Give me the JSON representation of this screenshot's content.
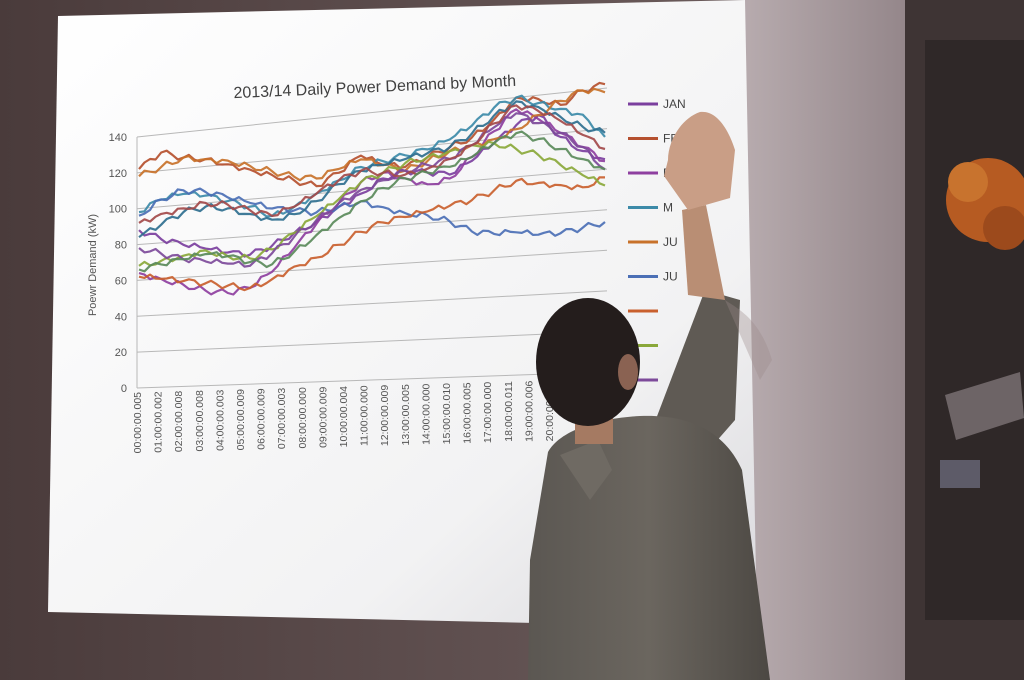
{
  "chart_data": {
    "type": "line",
    "title": "2013/14 Daily Power Demand by Month",
    "ylabel": "Poewr Demand (kW)",
    "xlabel": "",
    "ylim": [
      0,
      140
    ],
    "yticks": [
      "0",
      "20",
      "40",
      "60",
      "80",
      "100",
      "120",
      "140"
    ],
    "x_tick_labels": [
      "00:00:00.005",
      "01:00:00.002",
      "02:00:00.008",
      "03:00:00.008",
      "04:00:00.003",
      "05:00:00.009",
      "06:00:00.009",
      "07:00:00.003",
      "08:00:00.000",
      "09:00:00.009",
      "10:00:00.004",
      "11:00:00.000",
      "12:00:00.009",
      "13:00:00.005",
      "14:00:00.000",
      "15:00:00.010",
      "16:00:00.005",
      "17:00:00.000",
      "18:00:00.011",
      "19:00:00.006",
      "20:00:00.000"
    ],
    "legend_visible_labels": [
      "JAN",
      "FE",
      "PRIL",
      "M",
      "JU",
      "JU"
    ],
    "grid": "horizontal",
    "legend_position": "right",
    "series": [
      {
        "name": "JAN",
        "color": "#7b3f9e",
        "values": [
          88,
          82,
          78,
          75,
          72,
          70,
          74,
          80,
          85,
          92,
          98,
          105,
          108,
          106,
          104,
          110,
          118,
          126,
          130,
          118,
          110,
          105
        ]
      },
      {
        "name": "FE",
        "color": "#b5502f",
        "values": [
          122,
          130,
          126,
          124,
          120,
          116,
          112,
          108,
          104,
          110,
          118,
          112,
          110,
          114,
          118,
          122,
          130,
          140,
          138,
          134,
          140,
          142
        ]
      },
      {
        "name": "PRIL",
        "color": "#8e3fa0",
        "values": [
          64,
          60,
          56,
          52,
          50,
          52,
          60,
          72,
          84,
          94,
          104,
          108,
          104,
          100,
          102,
          112,
          124,
          134,
          128,
          120,
          112,
          104
        ]
      },
      {
        "name": "M",
        "color": "#3c8aa8",
        "values": [
          98,
          104,
          106,
          104,
          100,
          96,
          90,
          94,
          100,
          106,
          112,
          114,
          116,
          118,
          122,
          128,
          136,
          140,
          136,
          132,
          128,
          116
        ]
      },
      {
        "name": "JU",
        "color": "#c8722a",
        "values": [
          118,
          122,
          126,
          124,
          122,
          118,
          114,
          110,
          108,
          112,
          116,
          112,
          108,
          112,
          116,
          118,
          120,
          124,
          130,
          136,
          140,
          138
        ]
      },
      {
        "name": "JU",
        "color": "#4b6fb5",
        "values": [
          96,
          104,
          108,
          106,
          102,
          98,
          94,
          92,
          90,
          92,
          94,
          90,
          86,
          84,
          80,
          74,
          72,
          72,
          70,
          70,
          72,
          74
        ]
      },
      {
        "name": "",
        "color": "#c9602e",
        "values": [
          62,
          60,
          58,
          56,
          54,
          52,
          56,
          62,
          66,
          72,
          78,
          82,
          84,
          86,
          88,
          90,
          94,
          98,
          96,
          94,
          92,
          96
        ]
      },
      {
        "name": "",
        "color": "#8aa83a",
        "values": [
          68,
          70,
          72,
          74,
          70,
          68,
          72,
          80,
          88,
          96,
          104,
          108,
          112,
          114,
          116,
          118,
          118,
          114,
          110,
          104,
          98,
          92
        ]
      },
      {
        "name": "",
        "color": "#7d4a9a",
        "values": [
          78,
          74,
          70,
          68,
          66,
          64,
          70,
          78,
          86,
          94,
          100,
          104,
          108,
          110,
          112,
          118,
          126,
          132,
          126,
          120,
          112,
          100
        ]
      },
      {
        "name": "",
        "color": "#2f6f8f",
        "values": [
          84,
          90,
          96,
          98,
          96,
          92,
          88,
          90,
          96,
          104,
          110,
          112,
          114,
          116,
          118,
          124,
          132,
          138,
          134,
          128,
          122,
          118
        ]
      },
      {
        "name": "",
        "color": "#a34a4a",
        "values": [
          92,
          96,
          98,
          100,
          98,
          94,
          90,
          94,
          100,
          106,
          110,
          108,
          106,
          108,
          112,
          118,
          128,
          136,
          132,
          126,
          118,
          110
        ]
      },
      {
        "name": "",
        "color": "#5a8a5a",
        "values": [
          66,
          68,
          70,
          72,
          70,
          66,
          64,
          70,
          78,
          86,
          94,
          100,
          104,
          106,
          108,
          112,
          118,
          122,
          118,
          112,
          106,
          100
        ]
      }
    ]
  }
}
